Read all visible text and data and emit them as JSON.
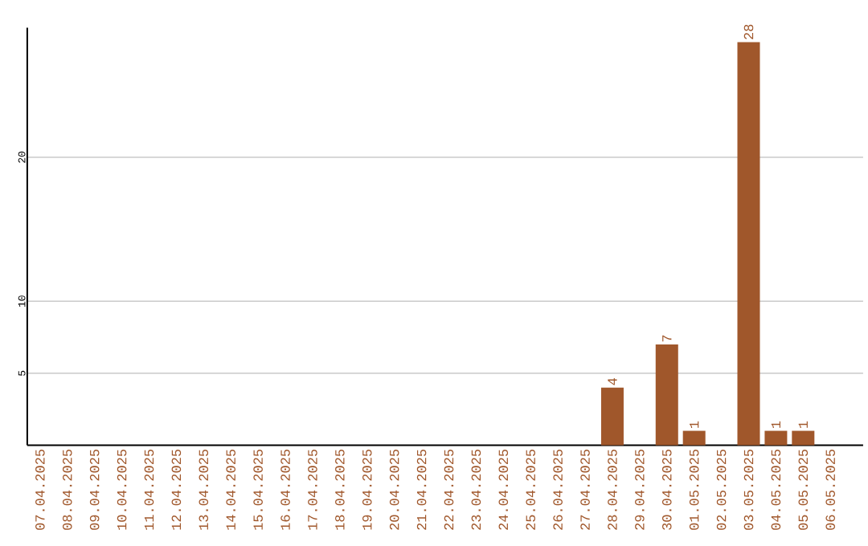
{
  "chart_data": {
    "type": "bar",
    "categories": [
      "07.04.2025",
      "08.04.2025",
      "09.04.2025",
      "10.04.2025",
      "11.04.2025",
      "12.04.2025",
      "13.04.2025",
      "14.04.2025",
      "15.04.2025",
      "16.04.2025",
      "17.04.2025",
      "18.04.2025",
      "19.04.2025",
      "20.04.2025",
      "21.04.2025",
      "22.04.2025",
      "23.04.2025",
      "24.04.2025",
      "25.04.2025",
      "26.04.2025",
      "27.04.2025",
      "28.04.2025",
      "29.04.2025",
      "30.04.2025",
      "01.05.2025",
      "02.05.2025",
      "03.05.2025",
      "04.05.2025",
      "05.05.2025",
      "06.05.2025"
    ],
    "values": [
      0,
      0,
      0,
      0,
      0,
      0,
      0,
      0,
      0,
      0,
      0,
      0,
      0,
      0,
      0,
      0,
      0,
      0,
      0,
      0,
      0,
      4,
      0,
      7,
      1,
      0,
      28,
      1,
      1,
      0
    ],
    "value_labels": [
      null,
      null,
      null,
      null,
      null,
      null,
      null,
      null,
      null,
      null,
      null,
      null,
      null,
      null,
      null,
      null,
      null,
      null,
      null,
      null,
      null,
      "4",
      null,
      "7",
      "1",
      null,
      "28",
      "1",
      "1",
      null
    ],
    "color": "#a0572b",
    "ylim": [
      0,
      29
    ],
    "yticks": [
      5,
      10,
      20
    ],
    "grid": "y"
  }
}
